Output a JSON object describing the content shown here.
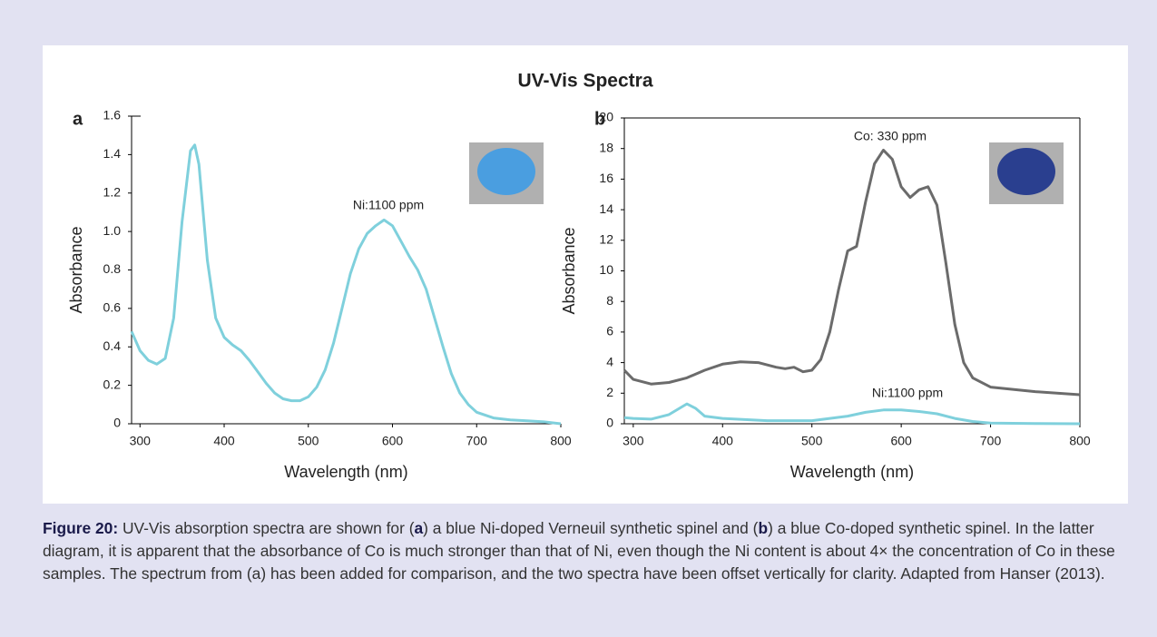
{
  "figure": {
    "title": "UV-Vis Spectra",
    "caption": [
      {
        "text": "Figure 20:",
        "bold": true
      },
      {
        "text": " UV-Vis absorption spectra are shown for (",
        "bold": false
      },
      {
        "text": "a",
        "bold": true
      },
      {
        "text": ") a blue Ni-doped Verneuil synthetic spinel and (",
        "bold": false
      },
      {
        "text": "b",
        "bold": true
      },
      {
        "text": ") a blue Co-doped synthetic spinel. In the latter diagram, it is apparent that the absorbance of Co is much stronger than that of Ni, even though the Ni content is about 4× the concentration of Co in these samples. The spectrum from (a) has been added for comparison, and the two spectra have been offset vertically for clarity. Adapted from Hanser (2013).",
        "bold": false
      }
    ]
  },
  "chart_data": [
    {
      "type": "line",
      "label": "a",
      "xlabel": "Wavelength (nm)",
      "ylabel": "Absorbance",
      "annotations": [
        "Ni:1100 ppm"
      ],
      "inset_color": "#4a9ee0",
      "series": [
        {
          "color": "#7fd0dc",
          "x": [
            290,
            300,
            310,
            320,
            330,
            340,
            350,
            360,
            365,
            370,
            380,
            390,
            400,
            410,
            420,
            430,
            440,
            450,
            460,
            470,
            480,
            490,
            500,
            510,
            520,
            530,
            540,
            550,
            560,
            570,
            580,
            590,
            600,
            610,
            620,
            630,
            640,
            650,
            660,
            670,
            680,
            690,
            700,
            720,
            740,
            760,
            780,
            800
          ],
          "values": [
            0.48,
            0.38,
            0.33,
            0.31,
            0.34,
            0.55,
            1.05,
            1.42,
            1.45,
            1.35,
            0.85,
            0.55,
            0.45,
            0.41,
            0.38,
            0.33,
            0.27,
            0.21,
            0.16,
            0.13,
            0.12,
            0.12,
            0.14,
            0.19,
            0.28,
            0.42,
            0.6,
            0.78,
            0.91,
            0.99,
            1.03,
            1.06,
            1.03,
            0.95,
            0.87,
            0.8,
            0.7,
            0.55,
            0.4,
            0.26,
            0.16,
            0.1,
            0.06,
            0.03,
            0.02,
            0.015,
            0.01,
            0
          ]
        }
      ],
      "xlim": [
        290,
        800
      ],
      "xticks": [
        300,
        400,
        500,
        600,
        700,
        800
      ],
      "ylim": [
        0,
        1.6
      ],
      "yticks": [
        0,
        0.2,
        0.4,
        0.6,
        0.8,
        {
          "value": 1,
          "label": "1.0"
        },
        1.2,
        1.4,
        1.6
      ],
      "box": false
    },
    {
      "type": "line",
      "label": "b",
      "xlabel": "Wavelength (nm)",
      "ylabel": "Absorbance",
      "annotations": [
        "Co: 330 ppm",
        "Ni:1100 ppm"
      ],
      "inset_color": "#2a3f8f",
      "series": [
        {
          "color": "#6b6b6b",
          "x": [
            290,
            300,
            320,
            340,
            360,
            380,
            400,
            420,
            440,
            460,
            470,
            480,
            490,
            500,
            510,
            520,
            530,
            540,
            550,
            560,
            570,
            580,
            590,
            600,
            610,
            620,
            630,
            640,
            650,
            660,
            670,
            680,
            700,
            750,
            800
          ],
          "values": [
            3.5,
            2.9,
            2.6,
            2.7,
            3.0,
            3.5,
            3.9,
            4.05,
            4.0,
            3.7,
            3.6,
            3.7,
            3.4,
            3.5,
            4.2,
            6.0,
            8.8,
            11.3,
            11.6,
            14.5,
            17.0,
            17.9,
            17.3,
            15.5,
            14.8,
            15.3,
            15.5,
            14.3,
            10.5,
            6.5,
            4.0,
            3.0,
            2.4,
            2.1,
            1.9
          ]
        },
        {
          "color": "#7fd0dc",
          "x": [
            290,
            300,
            320,
            340,
            360,
            370,
            380,
            400,
            450,
            500,
            540,
            560,
            580,
            600,
            620,
            640,
            660,
            680,
            700,
            750,
            800
          ],
          "values": [
            0.4,
            0.35,
            0.3,
            0.6,
            1.3,
            1.0,
            0.5,
            0.35,
            0.2,
            0.2,
            0.5,
            0.75,
            0.9,
            0.9,
            0.8,
            0.65,
            0.35,
            0.15,
            0.05,
            0.02,
            0
          ]
        }
      ],
      "xlim": [
        290,
        800
      ],
      "xticks": [
        300,
        400,
        500,
        600,
        700,
        800
      ],
      "ylim": [
        0,
        20
      ],
      "yticks": [
        0,
        2,
        4,
        6,
        8,
        10,
        12,
        14,
        16,
        18,
        20
      ],
      "box": true
    }
  ]
}
